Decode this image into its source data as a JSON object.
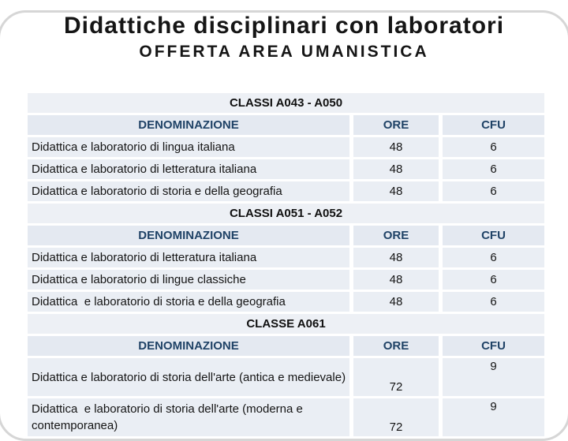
{
  "slide": {
    "title": "Didattiche disciplinari con laboratori",
    "subtitle": "OFFERTA AREA UMANISTICA"
  },
  "table": {
    "columns": [
      "DENOMINAZIONE",
      "ORE",
      "CFU"
    ],
    "sections": [
      {
        "header": "CLASSI A043 - A050",
        "two_line": false,
        "rows": [
          {
            "denominazione": "Didattica e laboratorio di lingua italiana",
            "ore": "48",
            "cfu": "6"
          },
          {
            "denominazione": "Didattica e laboratorio di letteratura italiana",
            "ore": "48",
            "cfu": "6"
          },
          {
            "denominazione": "Didattica e laboratorio di storia e della geografia",
            "ore": "48",
            "cfu": "6"
          }
        ]
      },
      {
        "header": "CLASSI A051 - A052",
        "two_line": false,
        "rows": [
          {
            "denominazione": "Didattica e laboratorio di letteratura italiana",
            "ore": "48",
            "cfu": "6"
          },
          {
            "denominazione": "Didattica e laboratorio di lingue classiche",
            "ore": "48",
            "cfu": "6"
          },
          {
            "denominazione": "Didattica  e laboratorio di storia e della geografia",
            "ore": "48",
            "cfu": "6"
          }
        ]
      },
      {
        "header": "CLASSE A061",
        "two_line": true,
        "rows": [
          {
            "denominazione": "Didattica e laboratorio di storia dell'arte (antica e medievale)",
            "ore": "72",
            "cfu": "9"
          },
          {
            "denominazione": "Didattica  e laboratorio di storia dell'arte (moderna e contemporanea)",
            "ore": "72",
            "cfu": "9"
          }
        ]
      }
    ]
  },
  "colors": {
    "title_text": "#151515",
    "header_text": "#1f4266",
    "cell_bg": "#eaeef4",
    "band_bg": "#edf0f5",
    "column_header_bg": "#e4e9f1",
    "corner_border": "#d6d6d6"
  }
}
